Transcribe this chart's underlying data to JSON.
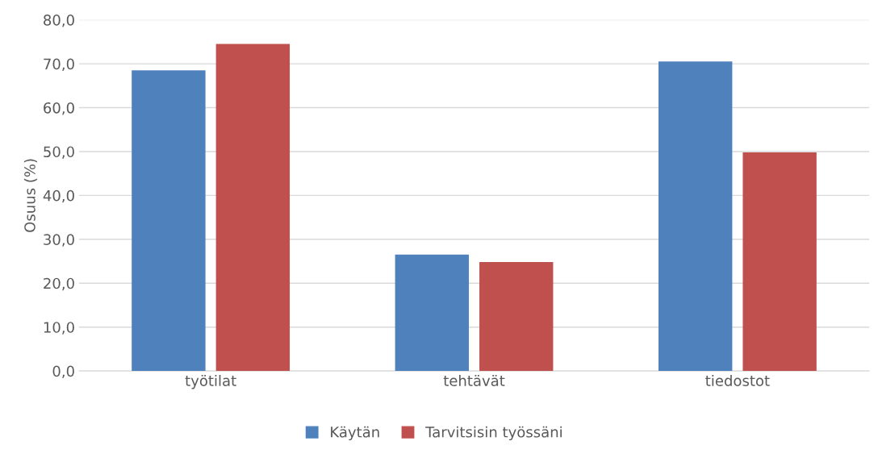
{
  "chart_data": {
    "type": "bar",
    "ylabel": "Osuus (%)",
    "categories": [
      "työtilat",
      "tehtävät",
      "tiedostot"
    ],
    "series": [
      {
        "name": "Käytän",
        "color": "#4f81bd",
        "values": [
          68.5,
          26.5,
          70.5
        ]
      },
      {
        "name": "Tarvitsisin työssäni",
        "color": "#c0504d",
        "values": [
          74.5,
          24.8,
          49.8
        ]
      }
    ],
    "ylim": [
      0,
      80
    ],
    "yticks": [
      {
        "value": 0,
        "label": "0,0"
      },
      {
        "value": 10,
        "label": "10,0"
      },
      {
        "value": 20,
        "label": "20,0"
      },
      {
        "value": 30,
        "label": "30,0"
      },
      {
        "value": 40,
        "label": "40,0"
      },
      {
        "value": 50,
        "label": "50,0"
      },
      {
        "value": 60,
        "label": "60,0"
      },
      {
        "value": 70,
        "label": "70,0"
      },
      {
        "value": 80,
        "label": "80,0"
      }
    ],
    "grid": "y",
    "legend": "bottom"
  }
}
